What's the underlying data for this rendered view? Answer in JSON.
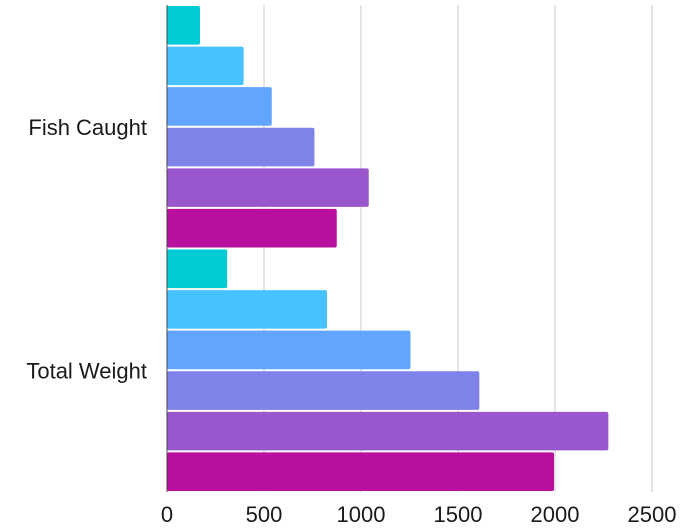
{
  "chart_data": {
    "type": "bar",
    "orientation": "horizontal",
    "categories": [
      "Fish Caught",
      "Total Weight"
    ],
    "series": [
      {
        "color": "#00ccd6",
        "values": [
          170,
          310
        ]
      },
      {
        "color": "#47c2ff",
        "values": [
          395,
          825
        ]
      },
      {
        "color": "#61a5ff",
        "values": [
          540,
          1255
        ]
      },
      {
        "color": "#7f82e8",
        "values": [
          760,
          1610
        ]
      },
      {
        "color": "#9a56cc",
        "values": [
          1040,
          2275
        ]
      },
      {
        "color": "#b80f9f",
        "values": [
          875,
          1995
        ]
      }
    ],
    "xlim": [
      0,
      2500
    ],
    "xticks": [
      "0",
      "500",
      "1000",
      "1500",
      "2000",
      "2500"
    ],
    "grid": true,
    "legend": "none"
  }
}
